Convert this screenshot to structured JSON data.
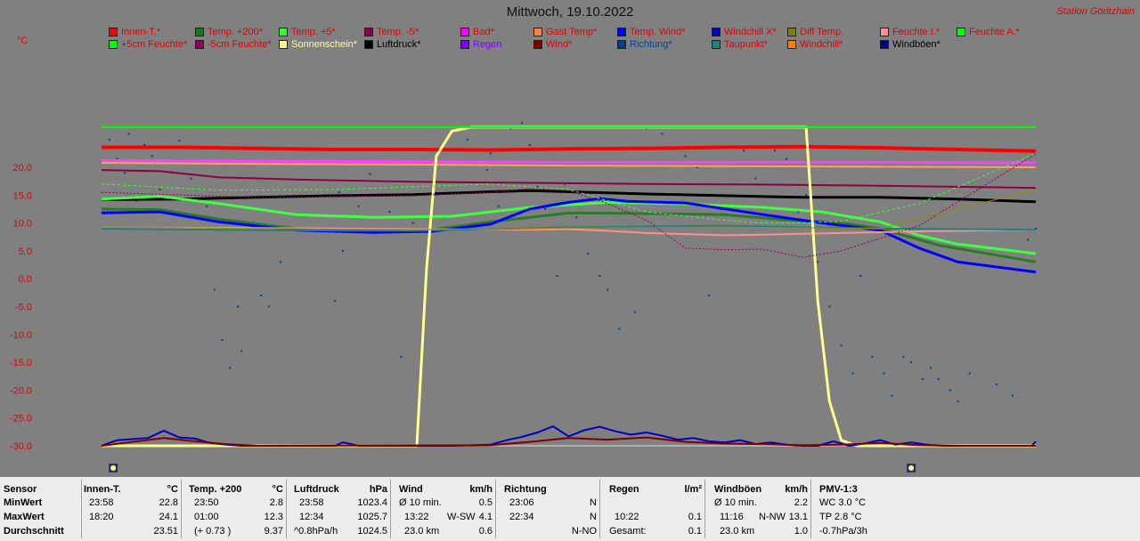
{
  "header": {
    "title": "Mittwoch, 19.10.2022",
    "station": "Station Göritzhain",
    "unit": "°C"
  },
  "legend": [
    {
      "label": "Innen-T.*",
      "color": "#ff0000"
    },
    {
      "label": "Temp. +200*",
      "color": "#1a7a1a"
    },
    {
      "label": "Temp. +5*",
      "color": "#30ff30"
    },
    {
      "label": "Temp. -5*",
      "color": "#8b0050"
    },
    {
      "label": "Bad*",
      "color": "#ff00ff"
    },
    {
      "label": "Gast Temp*",
      "color": "#ff7f40"
    },
    {
      "label": "Temp. Wind*",
      "color": "#0000ff"
    },
    {
      "label": "Windchill X*",
      "color": "#0000c0"
    },
    {
      "label": "Diff Temp.",
      "color": "#808000"
    },
    {
      "label": "Feuchte I.*",
      "color": "#ff9090"
    },
    {
      "label": "Feuchte A.*",
      "color": "#00ff00"
    },
    {
      "label": "+5cm Feuchte*",
      "color": "#00ff00"
    },
    {
      "label": "-5cm Feuchte*",
      "color": "#900060"
    },
    {
      "label": "Sonnenschein*",
      "color": "#ffff90"
    },
    {
      "label": "Luftdruck*",
      "color": "#000000"
    },
    {
      "label": "Regen",
      "color": "#8000ff"
    },
    {
      "label": "Wind*",
      "color": "#800000"
    },
    {
      "label": "Richtung*",
      "color": "#004080"
    },
    {
      "label": "Taupunkt*",
      "color": "#208080"
    },
    {
      "label": "Windchill*",
      "color": "#ff8000"
    },
    {
      "label": "Windböen*",
      "color": "#000080"
    }
  ],
  "legend_text_colors": {
    "Luftdruck*": "#000000",
    "Windböen*": "#000000",
    "Regen": "#8000ff",
    "Richtung*": "#0040a0",
    "Sonnenschein*": "#ffff90",
    "+5cm Feuchte*": "#e00000"
  },
  "chart_data": {
    "type": "line",
    "title": "Mittwoch, 19.10.2022",
    "ylabel": "°C",
    "ylim": [
      -30,
      27
    ],
    "yticks": [
      "20.0",
      "15.0",
      "10.0",
      "5.0",
      "0.0",
      "-5.0",
      "-10.0",
      "-15.0",
      "-20.0",
      "-25.0",
      "-30.0"
    ],
    "ytick_values": [
      20,
      15,
      10,
      5,
      0,
      -5,
      -10,
      -15,
      -20,
      -25,
      -30
    ],
    "x_hours": [
      0,
      24
    ],
    "series": [
      {
        "name": "Innen-T.*",
        "color": "#ff0000",
        "width": 4,
        "x": [
          0,
          2,
          4,
          6,
          8,
          10,
          12,
          14,
          16,
          18,
          20,
          22,
          24
        ],
        "y": [
          23.6,
          23.6,
          23.4,
          23.2,
          23.2,
          23.1,
          23.3,
          23.4,
          23.6,
          23.7,
          23.5,
          23.2,
          22.9
        ]
      },
      {
        "name": "Bad*",
        "color": "#ff40ff",
        "width": 3,
        "x": [
          0,
          4,
          8,
          12,
          16,
          20,
          24
        ],
        "y": [
          21.2,
          21.1,
          21.0,
          20.9,
          20.9,
          20.9,
          20.8
        ]
      },
      {
        "name": "Gast Temp*",
        "color": "#ffa060",
        "width": 2,
        "x": [
          0,
          4,
          8,
          12,
          16,
          20,
          24
        ],
        "y": [
          20.8,
          20.6,
          20.5,
          20.3,
          20.2,
          20.1,
          20.0
        ]
      },
      {
        "name": "Temp. -5*",
        "color": "#8b0040",
        "width": 2,
        "x": [
          0,
          1.5,
          3,
          5,
          8,
          11,
          14,
          17,
          20,
          24
        ],
        "y": [
          19.5,
          19.3,
          18.2,
          17.8,
          17.4,
          17.2,
          17.0,
          16.9,
          16.7,
          16.3
        ]
      },
      {
        "name": "Luftdruck*",
        "color": "#000000",
        "width": 3,
        "x": [
          0,
          2,
          4,
          6,
          8,
          10,
          11,
          12,
          14,
          16,
          18,
          20,
          22,
          24
        ],
        "y": [
          14.2,
          14.3,
          14.6,
          14.9,
          15.1,
          15.6,
          15.8,
          15.6,
          15.2,
          14.9,
          14.6,
          14.6,
          14.3,
          13.8
        ]
      },
      {
        "name": "Temp. +5*",
        "color": "#40ff40",
        "width": 3,
        "x": [
          0,
          1.5,
          3,
          5,
          7,
          9,
          11,
          13,
          15,
          17,
          18.5,
          20,
          21,
          22,
          24
        ],
        "y": [
          14.3,
          14.8,
          13.5,
          11.5,
          11.0,
          11.2,
          12.8,
          13.7,
          13.4,
          12.8,
          12.0,
          10.2,
          7.8,
          6.2,
          4.5
        ]
      },
      {
        "name": "Temp. +200*",
        "color": "#2a7a2a",
        "width": 3,
        "x": [
          0,
          1.5,
          3,
          5,
          7,
          8.5,
          10,
          12,
          14,
          16,
          17.5,
          19,
          20,
          21.5,
          24
        ],
        "y": [
          12.5,
          12.4,
          10.7,
          9.0,
          8.6,
          8.8,
          10.2,
          11.8,
          11.7,
          11.5,
          10.6,
          10.0,
          9.0,
          6.0,
          3.0
        ]
      },
      {
        "name": "Temp. Wind*",
        "color": "#0000ff",
        "width": 3,
        "x": [
          0,
          1.5,
          3,
          5,
          7,
          8.5,
          10,
          11,
          12,
          12.8,
          13.5,
          15,
          17,
          18.5,
          20,
          21,
          22,
          24
        ],
        "y": [
          11.8,
          12.0,
          10.2,
          8.7,
          8.3,
          8.5,
          9.8,
          12.5,
          13.7,
          14.4,
          13.9,
          13.6,
          11.5,
          10.0,
          8.7,
          5.5,
          3.0,
          1.2
        ]
      },
      {
        "name": "Feuchte I.*",
        "color": "#ff9090",
        "width": 2,
        "x": [
          0,
          4,
          8,
          11,
          12,
          13,
          14,
          16,
          17,
          19,
          21,
          24
        ],
        "y": [
          9.2,
          9.1,
          8.9,
          8.8,
          8.9,
          8.6,
          8.2,
          7.8,
          7.9,
          8.2,
          8.5,
          8.8
        ]
      },
      {
        "name": "Taupunkt*",
        "color": "#208080",
        "width": 2,
        "x": [
          0,
          4,
          8,
          12,
          16,
          20,
          24
        ],
        "y": [
          9.0,
          8.7,
          8.6,
          9.2,
          9.5,
          9.0,
          8.8
        ]
      },
      {
        "name": "Sonnenschein*",
        "color": "#ffff90",
        "width": 3,
        "x": [
          0,
          8.1,
          8.35,
          8.6,
          9.0,
          9.5,
          18.1,
          18.4,
          18.7,
          19.0,
          19.4,
          24
        ],
        "y": [
          -30,
          -30,
          2,
          22,
          26.5,
          27.2,
          27.2,
          -4,
          -22,
          -29,
          -30,
          -30
        ]
      },
      {
        "name": "Feuchte A.*",
        "color": "#00ff00",
        "width": 2,
        "x": [
          0,
          24
        ],
        "y": [
          27.2,
          27.2
        ]
      },
      {
        "name": "+5cm Feuchte*",
        "color": "#40ff40",
        "width": 1,
        "dash": "3,3",
        "x": [
          0,
          3,
          6,
          8,
          10,
          11,
          12,
          13,
          14,
          16,
          17,
          18,
          19,
          21,
          24
        ],
        "y": [
          17.0,
          15.9,
          16.0,
          16.5,
          17.0,
          16.5,
          16.0,
          14.0,
          12.0,
          10.5,
          10.0,
          10.0,
          10.3,
          13.5,
          22.5
        ]
      },
      {
        "name": "-5cm Feuchte*",
        "color": "#900050",
        "width": 1,
        "dash": "2,2",
        "x": [
          0,
          4,
          8,
          10,
          11,
          12,
          13,
          14,
          15,
          16,
          17,
          18,
          19,
          21,
          24
        ],
        "y": [
          15.5,
          14.6,
          14.9,
          15.5,
          16.2,
          15.8,
          13.5,
          10.5,
          5.5,
          5.2,
          5.3,
          3.8,
          5.0,
          9.5,
          22.4
        ]
      },
      {
        "name": "Diff Temp.",
        "color": "#909000",
        "width": 1,
        "x": [
          0,
          4,
          8,
          12,
          16,
          20,
          24
        ],
        "y": [
          9.3,
          9.0,
          8.8,
          9.1,
          9.3,
          9.0,
          16.0
        ]
      }
    ],
    "wind": {
      "name": "Windböen*",
      "color": "#0000c0",
      "x": [
        0,
        0.4,
        0.8,
        1.2,
        1.6,
        2.0,
        2.4,
        2.8,
        3.2,
        3.6,
        4.0,
        6.0,
        6.2,
        6.6,
        7.0,
        8.0,
        9.0,
        10.0,
        10.4,
        10.8,
        11.2,
        11.6,
        12.0,
        12.4,
        12.8,
        13.2,
        13.6,
        14.0,
        14.4,
        14.8,
        15.2,
        15.6,
        16.0,
        16.4,
        16.8,
        17.2,
        17.6,
        18.0,
        18.4,
        18.8,
        19.2,
        19.6,
        20.0,
        20.4,
        20.8,
        21.2,
        21.6,
        22.0,
        23.9,
        24.0
      ],
      "y": [
        -30,
        -29,
        -28.8,
        -28.6,
        -27.3,
        -28.5,
        -28.7,
        -29.5,
        -29.8,
        -30,
        -30,
        -30,
        -29.4,
        -30,
        -30,
        -30,
        -30,
        -29.8,
        -29.0,
        -28.4,
        -27.6,
        -26.5,
        -28.3,
        -27.2,
        -26.6,
        -27.4,
        -28.0,
        -27.6,
        -28.2,
        -28.9,
        -28.6,
        -29.2,
        -29.4,
        -29.0,
        -29.7,
        -29.4,
        -29.8,
        -30,
        -30,
        -29.2,
        -30,
        -29.6,
        -29.0,
        -29.8,
        -29.4,
        -29.8,
        -30,
        -30,
        -30,
        -29.2
      ]
    },
    "gust_avg": {
      "name": "Wind*",
      "color": "#800000",
      "x": [
        0,
        0.8,
        1.6,
        2.4,
        3.2,
        4.0,
        10.0,
        11.0,
        12.0,
        13.0,
        14.0,
        15.0,
        16.0,
        17.0,
        18.0,
        19.0,
        20.0,
        21.0,
        22.0,
        24.0
      ],
      "y": [
        -30,
        -29.3,
        -28.6,
        -29.2,
        -29.7,
        -30,
        -29.9,
        -29.3,
        -28.6,
        -28.9,
        -28.5,
        -29.3,
        -29.6,
        -29.7,
        -29.9,
        -29.8,
        -29.5,
        -29.9,
        -30,
        -30
      ]
    },
    "direction_dots": {
      "name": "Richtung*",
      "color": "#004080",
      "x": [
        0.2,
        0.4,
        0.6,
        0.7,
        0.9,
        1.1,
        1.3,
        1.5,
        1.8,
        2.0,
        2.3,
        2.5,
        2.7,
        2.9,
        3.1,
        3.3,
        3.5,
        3.6,
        4.1,
        4.3,
        4.6,
        6.0,
        6.1,
        6.2,
        6.6,
        6.9,
        7.2,
        7.4,
        7.7,
        8.0,
        8.2,
        9.1,
        9.4,
        9.9,
        10.0,
        10.2,
        10.5,
        10.8,
        11.0,
        11.2,
        11.4,
        11.7,
        11.9,
        12.2,
        12.5,
        12.8,
        13.0,
        13.3,
        13.7,
        14.0,
        14.4,
        14.8,
        15.0,
        15.3,
        15.6,
        15.9,
        16.2,
        16.5,
        16.8,
        17.3,
        17.6,
        17.9,
        18.1,
        18.4,
        18.7,
        19.0,
        19.3,
        19.5,
        19.8,
        20.1,
        20.3,
        20.6,
        20.8,
        21.1,
        21.3,
        21.5,
        21.8,
        22.0,
        22.3,
        23.0,
        23.4,
        23.8,
        24.0
      ],
      "y": [
        25.0,
        21.5,
        19.0,
        26.0,
        14.0,
        24.0,
        22.0,
        16.0,
        19.0,
        24.8,
        18.0,
        9.0,
        13.0,
        -2.0,
        -11.0,
        -16.0,
        -5.0,
        -13.0,
        -3.0,
        -5.0,
        3.0,
        -4.0,
        15.5,
        5.0,
        13.0,
        18.8,
        9.0,
        12.0,
        -14.0,
        10.0,
        20.5,
        21.0,
        25.0,
        19.5,
        22.5,
        13.0,
        27.0,
        28.0,
        24.0,
        16.5,
        12.5,
        0.5,
        17.0,
        11.0,
        4.5,
        0.5,
        -2.0,
        -9.0,
        -6.0,
        27.0,
        26.0,
        21.0,
        22.0,
        20.0,
        -3.0,
        12.5,
        21.0,
        23.0,
        18.0,
        23.0,
        21.5,
        12.0,
        15.0,
        3.0,
        -5.0,
        -12.0,
        -17.0,
        0.5,
        -14.0,
        -17.0,
        -21.0,
        -14.0,
        -15.0,
        -18.0,
        -16.0,
        -18.0,
        -20.0,
        -22.0,
        -17.0,
        -19.0,
        -21.0,
        7.0,
        9.0
      ]
    }
  },
  "markers": [
    {
      "label": "sunrise-icon",
      "hour": 0.3
    },
    {
      "label": "sunset-icon",
      "hour": 20.8
    }
  ],
  "stats": {
    "row_labels": {
      "sensor": "Sensor",
      "min": "MinWert",
      "max": "MaxWert",
      "avg": "Durchschnitt"
    },
    "innen": {
      "name": "Innen-T.",
      "unit": "°C",
      "min_time": "23:58",
      "min_val": "22.8",
      "max_time": "18:20",
      "max_val": "24.1",
      "avg": "23.51"
    },
    "temp200": {
      "name": "Temp. +200",
      "unit": "°C",
      "min_time": "23:50",
      "min_val": "2.8",
      "max_time": "01:00",
      "max_val": "12.3",
      "avg_extra": "(+ 0.73 )",
      "avg": "9.37"
    },
    "luftdruck": {
      "name": "Luftdruck",
      "unit": "hPa",
      "min_time": "23:58",
      "min_val": "1023.4",
      "max_time": "12:34",
      "max_val": "1025.7",
      "avg_extra": "^0.8hPa/h",
      "avg": "1024.5"
    },
    "wind": {
      "name": "Wind",
      "unit": "km/h",
      "r1_a": "Ø 10 min.",
      "r1_b": "0.5",
      "r2_a": "13:22",
      "r2_m": "W-SW",
      "r2_b": "4.1",
      "r3_a": "23.0 km",
      "r3_b": "0.6"
    },
    "richtung": {
      "name": "Richtung",
      "r1_a": "23:06",
      "r1_b": "N",
      "r2_a": "22:34",
      "r2_b": "N",
      "r3_b": "N-NO"
    },
    "regen": {
      "name": "Regen",
      "unit": "l/m²",
      "r2_a": "10:22",
      "r2_b": "0.1",
      "r3_a": "Gesamt:",
      "r3_b": "0.1"
    },
    "windboen": {
      "name": "Windböen",
      "unit": "km/h",
      "r1_a": "Ø 10 min.",
      "r1_b": "2.2",
      "r2_a": "11:16",
      "r2_m": "N-NW",
      "r2_b": "13.1",
      "r3_a": "23.0 km",
      "r3_b": "1.0"
    },
    "pmv": {
      "name": "PMV-1:3",
      "r1": "WC 3.0 °C",
      "r2": "TP 2.8 °C",
      "r3": "-0.7hPa/3h"
    }
  }
}
